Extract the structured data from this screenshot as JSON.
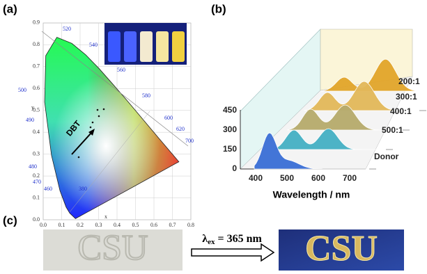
{
  "panels": {
    "a": {
      "label": "(a)",
      "x_axis": {
        "label": "x",
        "ticks": [
          "0.0",
          "0.1",
          "0.2",
          "0.3",
          "0.4",
          "0.5",
          "0.6",
          "0.7",
          "0.8"
        ]
      },
      "y_axis": {
        "label": "y",
        "ticks": [
          "0.0",
          "0.1",
          "0.2",
          "0.3",
          "0.4",
          "0.5",
          "0.6",
          "0.7",
          "0.8",
          "0.9"
        ]
      },
      "wavelength_labels": [
        "380",
        "460",
        "470",
        "480",
        "490",
        "500",
        "520",
        "540",
        "560",
        "580",
        "600",
        "620",
        "700"
      ],
      "arrow_label": "DBT"
    },
    "b": {
      "label": "(b)",
      "y_ticks": [
        "0",
        "150",
        "300",
        "450"
      ],
      "x_ticks": [
        "400",
        "500",
        "600",
        "700"
      ],
      "x_axis_label": "Wavelength / nm",
      "series_labels": [
        "Donor",
        "500:1",
        "400:1",
        "300:1",
        "200:1"
      ]
    },
    "c": {
      "label": "(c)",
      "sample_text": "CSU",
      "excitation": {
        "symbol": "λ",
        "subscript": "ex",
        "rest": "= 365 nm"
      }
    }
  }
}
